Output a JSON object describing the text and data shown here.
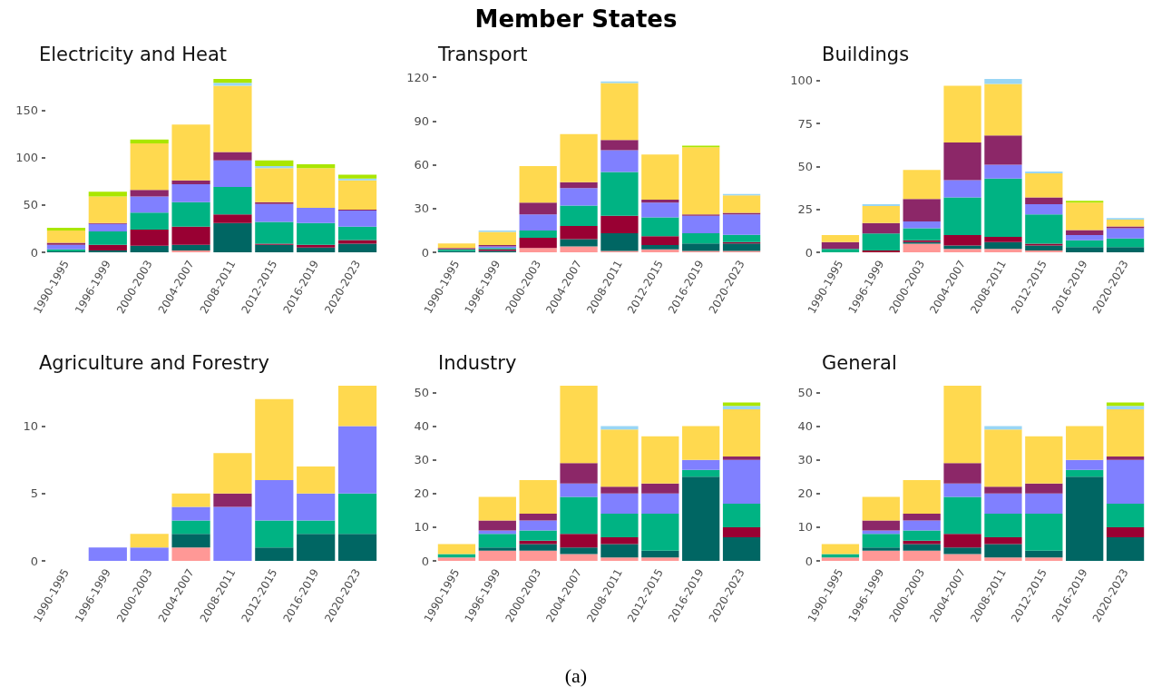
{
  "chart_data": [
    {
      "type": "bar",
      "title": "Electricity and Heat",
      "stacked": true,
      "annotations": [
        "Member States",
        "(a)"
      ],
      "categories": [
        "1990-1995",
        "1996-1999",
        "2000-2003",
        "2004-2007",
        "2008-2011",
        "2012-2015",
        "2016-2019",
        "2020-2023"
      ],
      "ylim": [
        0,
        185
      ],
      "yticks": [
        0,
        50,
        100,
        150
      ],
      "series": [
        {
          "color": "#ff9896",
          "values": [
            0,
            0,
            0,
            2,
            0,
            0,
            0,
            0
          ]
        },
        {
          "color": "#006663",
          "values": [
            1,
            2,
            7,
            6,
            31,
            8,
            5,
            9
          ]
        },
        {
          "color": "#990033",
          "values": [
            0,
            6,
            17,
            19,
            9,
            1,
            3,
            4
          ]
        },
        {
          "color": "#00b383",
          "values": [
            2,
            14,
            18,
            26,
            29,
            23,
            23,
            14
          ]
        },
        {
          "color": "#8080ff",
          "values": [
            5,
            8,
            17,
            19,
            28,
            19,
            16,
            17
          ]
        },
        {
          "color": "#8c2768",
          "values": [
            2,
            1,
            7,
            4,
            9,
            2,
            0,
            1
          ]
        },
        {
          "color": "#ffd94f",
          "values": [
            13,
            28,
            49,
            59,
            70,
            36,
            42,
            31
          ]
        },
        {
          "color": "#99d6f5",
          "values": [
            0,
            0,
            0,
            0,
            3,
            2,
            0,
            2
          ]
        },
        {
          "color": "#aae600",
          "values": [
            3,
            5,
            4,
            0,
            4,
            6,
            4,
            4
          ]
        }
      ]
    },
    {
      "type": "bar",
      "title": "Transport",
      "stacked": true,
      "categories": [
        "1990-1995",
        "1996-1999",
        "2000-2003",
        "2004-2007",
        "2008-2011",
        "2012-2015",
        "2016-2019",
        "2020-2023"
      ],
      "ylim": [
        0,
        120
      ],
      "yticks": [
        0,
        30,
        60,
        90,
        120
      ],
      "series": [
        {
          "color": "#ff9896",
          "values": [
            0,
            0,
            3,
            4,
            1,
            2,
            1,
            1
          ]
        },
        {
          "color": "#006663",
          "values": [
            1,
            1,
            0,
            5,
            12,
            3,
            5,
            5
          ]
        },
        {
          "color": "#990033",
          "values": [
            0,
            1,
            7,
            9,
            12,
            6,
            0,
            1
          ]
        },
        {
          "color": "#00b383",
          "values": [
            1,
            1,
            5,
            14,
            30,
            13,
            7,
            5
          ]
        },
        {
          "color": "#8080ff",
          "values": [
            0,
            1,
            11,
            12,
            15,
            10,
            12,
            14
          ]
        },
        {
          "color": "#8c2768",
          "values": [
            1,
            1,
            8,
            4,
            7,
            2,
            1,
            1
          ]
        },
        {
          "color": "#ffd94f",
          "values": [
            3,
            9,
            25,
            33,
            39,
            31,
            46,
            12
          ]
        },
        {
          "color": "#99d6f5",
          "values": [
            0,
            1,
            0,
            0,
            1,
            0,
            0,
            1
          ]
        },
        {
          "color": "#aae600",
          "values": [
            0,
            0,
            0,
            0,
            0,
            0,
            1,
            0
          ]
        }
      ]
    },
    {
      "type": "bar",
      "title": "Buildings",
      "stacked": true,
      "categories": [
        "1990-1995",
        "1996-1999",
        "2000-2003",
        "2004-2007",
        "2008-2011",
        "2012-2015",
        "2016-2019",
        "2020-2023"
      ],
      "ylim": [
        0,
        102
      ],
      "yticks": [
        0,
        25,
        50,
        75,
        100
      ],
      "series": [
        {
          "color": "#ff9896",
          "values": [
            0,
            0,
            5,
            2,
            2,
            1,
            0,
            0
          ]
        },
        {
          "color": "#006663",
          "values": [
            0,
            0,
            1,
            2,
            4,
            3,
            3,
            3
          ]
        },
        {
          "color": "#990033",
          "values": [
            0,
            1,
            1,
            6,
            3,
            1,
            0,
            0
          ]
        },
        {
          "color": "#00b383",
          "values": [
            2,
            10,
            7,
            22,
            34,
            17,
            4,
            5
          ]
        },
        {
          "color": "#8080ff",
          "values": [
            0,
            0,
            4,
            10,
            8,
            6,
            3,
            6
          ]
        },
        {
          "color": "#8c2768",
          "values": [
            4,
            6,
            13,
            22,
            17,
            4,
            3,
            1
          ]
        },
        {
          "color": "#ffd94f",
          "values": [
            4,
            10,
            17,
            33,
            30,
            14,
            16,
            4
          ]
        },
        {
          "color": "#99d6f5",
          "values": [
            0,
            1,
            0,
            0,
            3,
            1,
            0,
            1
          ]
        },
        {
          "color": "#aae600",
          "values": [
            0,
            0,
            0,
            0,
            0,
            0,
            1,
            0
          ]
        }
      ]
    },
    {
      "type": "bar",
      "title": "Agriculture and Forestry",
      "stacked": true,
      "categories": [
        "1990-1995",
        "1996-1999",
        "2000-2003",
        "2004-2007",
        "2008-2011",
        "2012-2015",
        "2016-2019",
        "2020-2023"
      ],
      "ylim": [
        0,
        13
      ],
      "yticks": [
        0,
        5,
        10
      ],
      "series": [
        {
          "color": "#ff9896",
          "values": [
            0,
            0,
            0,
            1,
            0,
            0,
            0,
            0
          ]
        },
        {
          "color": "#006663",
          "values": [
            0,
            0,
            0,
            1,
            0,
            1,
            2,
            2
          ]
        },
        {
          "color": "#00b383",
          "values": [
            0,
            0,
            0,
            1,
            0,
            2,
            1,
            3
          ]
        },
        {
          "color": "#8080ff",
          "values": [
            0,
            1,
            1,
            1,
            4,
            3,
            2,
            5
          ]
        },
        {
          "color": "#8c2768",
          "values": [
            0,
            0,
            0,
            0,
            1,
            0,
            0,
            0
          ]
        },
        {
          "color": "#ffd94f",
          "values": [
            0,
            0,
            1,
            1,
            3,
            6,
            2,
            3
          ]
        }
      ]
    },
    {
      "type": "bar",
      "title": "Industry",
      "stacked": true,
      "categories": [
        "1990-1995",
        "1996-1999",
        "2000-2003",
        "2004-2007",
        "2008-2011",
        "2012-2015",
        "2016-2019",
        "2020-2023"
      ],
      "ylim": [
        0,
        52
      ],
      "yticks": [
        0,
        10,
        20,
        30,
        40,
        50
      ],
      "series": [
        {
          "color": "#ff9896",
          "values": [
            1,
            3,
            3,
            2,
            1,
            1,
            0,
            0
          ]
        },
        {
          "color": "#006663",
          "values": [
            0,
            1,
            2,
            2,
            4,
            2,
            25,
            7
          ]
        },
        {
          "color": "#990033",
          "values": [
            0,
            0,
            1,
            4,
            2,
            0,
            0,
            3
          ]
        },
        {
          "color": "#00b383",
          "values": [
            1,
            4,
            3,
            11,
            7,
            11,
            2,
            7
          ]
        },
        {
          "color": "#8080ff",
          "values": [
            0,
            1,
            3,
            4,
            6,
            6,
            3,
            13
          ]
        },
        {
          "color": "#8c2768",
          "values": [
            0,
            3,
            2,
            6,
            2,
            3,
            0,
            1
          ]
        },
        {
          "color": "#ffd94f",
          "values": [
            3,
            7,
            10,
            23,
            17,
            14,
            10,
            14
          ]
        },
        {
          "color": "#99d6f5",
          "values": [
            0,
            0,
            0,
            0,
            1,
            0,
            0,
            1
          ]
        },
        {
          "color": "#aae600",
          "values": [
            0,
            0,
            0,
            0,
            0,
            0,
            0,
            1
          ]
        }
      ]
    },
    {
      "type": "bar",
      "title": "General",
      "stacked": true,
      "categories": [
        "1990-1995",
        "1996-1999",
        "2000-2003",
        "2004-2007",
        "2008-2011",
        "2012-2015",
        "2016-2019",
        "2020-2023"
      ],
      "ylim": [
        0,
        52
      ],
      "yticks": [
        0,
        10,
        20,
        30,
        40,
        50
      ],
      "series": [
        {
          "color": "#ff9896",
          "values": [
            1,
            3,
            3,
            2,
            1,
            1,
            0,
            0
          ]
        },
        {
          "color": "#006663",
          "values": [
            0,
            1,
            2,
            2,
            4,
            2,
            25,
            7
          ]
        },
        {
          "color": "#990033",
          "values": [
            0,
            0,
            1,
            4,
            2,
            0,
            0,
            3
          ]
        },
        {
          "color": "#00b383",
          "values": [
            1,
            4,
            3,
            11,
            7,
            11,
            2,
            7
          ]
        },
        {
          "color": "#8080ff",
          "values": [
            0,
            1,
            3,
            4,
            6,
            6,
            3,
            13
          ]
        },
        {
          "color": "#8c2768",
          "values": [
            0,
            3,
            2,
            6,
            2,
            3,
            0,
            1
          ]
        },
        {
          "color": "#ffd94f",
          "values": [
            3,
            7,
            10,
            23,
            17,
            14,
            10,
            14
          ]
        },
        {
          "color": "#99d6f5",
          "values": [
            0,
            0,
            0,
            0,
            1,
            0,
            0,
            1
          ]
        },
        {
          "color": "#aae600",
          "values": [
            0,
            0,
            0,
            0,
            0,
            0,
            0,
            1
          ]
        }
      ]
    }
  ]
}
